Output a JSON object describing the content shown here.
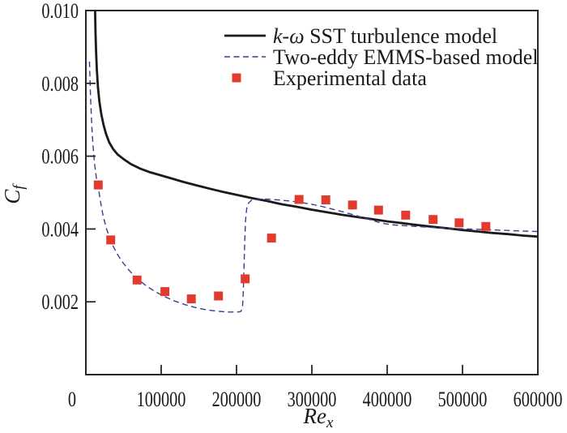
{
  "figure": {
    "background_color": "#ffffff",
    "frame_color": "#262626",
    "tick_color": "#262626",
    "text_color": "#1a1a1a"
  },
  "chart_data": {
    "type": "line",
    "title": "",
    "xlabel": {
      "main": "Re",
      "sub": "x",
      "italic": true
    },
    "ylabel": {
      "main": "C",
      "sub": "f",
      "italic": true
    },
    "xlim": [
      0,
      600000
    ],
    "ylim": [
      0,
      0.01
    ],
    "x_ticks": [
      0,
      100000,
      200000,
      300000,
      400000,
      500000,
      600000
    ],
    "x_tick_labels": [
      "0",
      "100000",
      "200000",
      "300000",
      "400000",
      "500000",
      "600000"
    ],
    "y_ticks": [
      0,
      0.002,
      0.004,
      0.006,
      0.008,
      0.01
    ],
    "y_tick_labels": [
      "0",
      "0.002",
      "0.004",
      "0.006",
      "0.008",
      "0.010"
    ],
    "grid": false,
    "legend_position": "top-center-inside",
    "series": [
      {
        "id": "k-omega-sst-model",
        "type": "line",
        "style": "solid",
        "color": "#1a1a1a",
        "width": 2.8,
        "label_runs": [
          {
            "text": "k-ω",
            "italic": true
          },
          {
            "text": " SST turbulence model",
            "italic": false
          }
        ],
        "points": [
          [
            12000,
            0.0106
          ],
          [
            12300,
            0.01
          ],
          [
            12800,
            0.0094
          ],
          [
            13500,
            0.0089
          ],
          [
            14500,
            0.0084
          ],
          [
            16000,
            0.0079
          ],
          [
            18000,
            0.0075
          ],
          [
            20500,
            0.00715
          ],
          [
            23500,
            0.00685
          ],
          [
            27000,
            0.0066
          ],
          [
            31000,
            0.00638
          ],
          [
            36000,
            0.0062
          ],
          [
            42000,
            0.00605
          ],
          [
            50000,
            0.00592
          ],
          [
            60000,
            0.00578
          ],
          [
            72000,
            0.00566
          ],
          [
            85000,
            0.00556
          ],
          [
            100000,
            0.00547
          ],
          [
            115000,
            0.00538
          ],
          [
            130000,
            0.00529
          ],
          [
            145000,
            0.00521
          ],
          [
            160000,
            0.00513
          ],
          [
            180000,
            0.00503
          ],
          [
            200000,
            0.00494
          ],
          [
            220000,
            0.00485
          ],
          [
            240000,
            0.00477
          ],
          [
            260000,
            0.00468
          ],
          [
            280000,
            0.00461
          ],
          [
            300000,
            0.00453
          ],
          [
            320000,
            0.00446
          ],
          [
            340000,
            0.00439
          ],
          [
            360000,
            0.00433
          ],
          [
            380000,
            0.00427
          ],
          [
            400000,
            0.00421
          ],
          [
            420000,
            0.00416
          ],
          [
            440000,
            0.00411
          ],
          [
            460000,
            0.00406
          ],
          [
            480000,
            0.00402
          ],
          [
            500000,
            0.00397
          ],
          [
            520000,
            0.00393
          ],
          [
            540000,
            0.00389
          ],
          [
            560000,
            0.00386
          ],
          [
            580000,
            0.00382
          ],
          [
            600000,
            0.00379
          ]
        ]
      },
      {
        "id": "two-eddy-emms-model",
        "type": "line",
        "style": "dashed",
        "dash": "7 4.5",
        "color": "#3c3c8c",
        "width": 1.4,
        "label_runs": [
          {
            "text": "Two-eddy EMMS-based model",
            "italic": false
          }
        ],
        "points": [
          [
            4800,
            0.0086
          ],
          [
            5500,
            0.0081
          ],
          [
            6500,
            0.0075
          ],
          [
            8000,
            0.0068
          ],
          [
            9500,
            0.0063
          ],
          [
            11500,
            0.0058
          ],
          [
            14000,
            0.0054
          ],
          [
            16500,
            0.00515
          ],
          [
            19500,
            0.00475
          ],
          [
            23000,
            0.00435
          ],
          [
            27000,
            0.00403
          ],
          [
            31500,
            0.00376
          ],
          [
            36500,
            0.00352
          ],
          [
            42000,
            0.0033
          ],
          [
            48000,
            0.00311
          ],
          [
            55000,
            0.00292
          ],
          [
            63000,
            0.00274
          ],
          [
            72000,
            0.00257
          ],
          [
            82000,
            0.00241
          ],
          [
            93000,
            0.00227
          ],
          [
            105000,
            0.00214
          ],
          [
            118000,
            0.00202
          ],
          [
            132000,
            0.00192
          ],
          [
            146000,
            0.00184
          ],
          [
            160000,
            0.00178
          ],
          [
            175000,
            0.00174
          ],
          [
            190000,
            0.00172
          ],
          [
            202000,
            0.00172
          ],
          [
            206000,
            0.00174
          ],
          [
            208000,
            0.00185
          ],
          [
            209000,
            0.0023
          ],
          [
            210000,
            0.003
          ],
          [
            211000,
            0.0037
          ],
          [
            212000,
            0.00425
          ],
          [
            213500,
            0.00457
          ],
          [
            216000,
            0.00472
          ],
          [
            220000,
            0.00479
          ],
          [
            228000,
            0.00482
          ],
          [
            240000,
            0.00482
          ],
          [
            255000,
            0.0048
          ],
          [
            270000,
            0.00477
          ],
          [
            285000,
            0.00473
          ],
          [
            300000,
            0.00468
          ],
          [
            315000,
            0.00461
          ],
          [
            330000,
            0.00453
          ],
          [
            345000,
            0.00445
          ],
          [
            360000,
            0.00436
          ],
          [
            375000,
            0.00427
          ],
          [
            388000,
            0.00419
          ],
          [
            398000,
            0.00414
          ],
          [
            410000,
            0.00411
          ],
          [
            425000,
            0.00409
          ],
          [
            445000,
            0.00406
          ],
          [
            470000,
            0.00403
          ],
          [
            495000,
            0.00401
          ],
          [
            520000,
            0.00399
          ],
          [
            545000,
            0.00397
          ],
          [
            570000,
            0.00395
          ],
          [
            600000,
            0.00393
          ]
        ]
      },
      {
        "id": "experimental-data",
        "type": "scatter",
        "marker": "square",
        "color": "#e23b2e",
        "size": 11,
        "label_runs": [
          {
            "text": "Experimental data",
            "italic": false
          }
        ],
        "points": [
          [
            16500,
            0.00521
          ],
          [
            33000,
            0.0037
          ],
          [
            68000,
            0.0026
          ],
          [
            105000,
            0.00228
          ],
          [
            140000,
            0.00208
          ],
          [
            176000,
            0.00216
          ],
          [
            211500,
            0.00263
          ],
          [
            246500,
            0.00375
          ],
          [
            283000,
            0.00481
          ],
          [
            318500,
            0.0048
          ],
          [
            354000,
            0.00466
          ],
          [
            388500,
            0.00452
          ],
          [
            424500,
            0.00438
          ],
          [
            461000,
            0.00426
          ],
          [
            495500,
            0.00417
          ],
          [
            531000,
            0.00407
          ]
        ]
      }
    ]
  }
}
